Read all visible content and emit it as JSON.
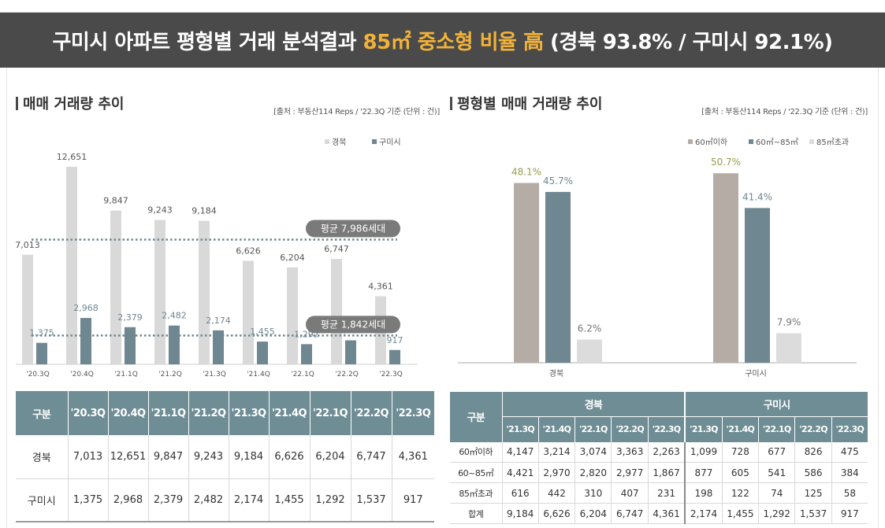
{
  "banner": {
    "title_white_1": "구미시 아파트 평형별 거래 분석결과 ",
    "title_orange": "85㎡ 중소형 비율 高",
    "title_white_2": " (경북 93.8% / 구미시 92.1%)"
  },
  "left": {
    "title": "매매 거래량 추이",
    "source": "[출처 : 부동산114 Reps / '22.3Q 기준 (단위 : 건)]"
  },
  "right": {
    "title": "평형별 매매 거래량 추이",
    "source": "[출처 : 부동산114 Reps / '22.3Q 기준 (단위 : 건)]"
  },
  "chart_data": [
    {
      "type": "bar",
      "categories": [
        "'20.3Q",
        "'20.4Q",
        "'21.1Q",
        "'21.2Q",
        "'21.3Q",
        "'21.4Q",
        "'22.1Q",
        "'22.2Q",
        "'22.3Q"
      ],
      "series": [
        {
          "name": "경북",
          "color": "#d9d9d9",
          "label_color": "#555555",
          "values": [
            7013,
            12651,
            9847,
            9243,
            9184,
            6626,
            6204,
            6747,
            4361
          ],
          "labels": [
            "7,013",
            "12,651",
            "9,847",
            "9,243",
            "9,184",
            "6,626",
            "6,204",
            "6,747",
            "4,361"
          ]
        },
        {
          "name": "구미시",
          "color": "#6f8790",
          "label_color": "#6f8790",
          "values": [
            1375,
            2968,
            2379,
            2482,
            2174,
            1455,
            1292,
            1537,
            917
          ],
          "labels": [
            "1,375",
            "2,968",
            "2,379",
            "2,482",
            "2,174",
            "1,455",
            "1,292",
            "1,537",
            "917"
          ]
        }
      ],
      "averages": [
        {
          "value": 7986,
          "label": "평균 7,986세대"
        },
        {
          "value": 1842,
          "label": "평균 1,842세대"
        }
      ],
      "ylim": [
        0,
        13500
      ],
      "legend": "top-right",
      "grid": false
    },
    {
      "type": "bar",
      "categories": [
        "경북",
        "구미시"
      ],
      "series": [
        {
          "name": "60㎡이하",
          "color": "#b5ada5",
          "label_color": "#9b9a4c",
          "values": [
            48.1,
            50.7
          ],
          "labels": [
            "48.1%",
            "50.7%"
          ]
        },
        {
          "name": "60㎡~85㎡",
          "color": "#6f8790",
          "label_color": "#6f8790",
          "values": [
            45.7,
            41.4
          ],
          "labels": [
            "45.7%",
            "41.4%"
          ]
        },
        {
          "name": "85㎡초과",
          "color": "#dcdcdc",
          "label_color": "#777777",
          "values": [
            6.2,
            7.9
          ],
          "labels": [
            "6.2%",
            "7.9%"
          ]
        }
      ],
      "ylim": [
        0,
        56
      ],
      "legend": "top-right",
      "grid": false
    }
  ],
  "table1": {
    "header": [
      "구분",
      "'20.3Q",
      "'20.4Q",
      "'21.1Q",
      "'21.2Q",
      "'21.3Q",
      "'21.4Q",
      "'22.1Q",
      "'22.2Q",
      "'22.3Q"
    ],
    "rows": [
      [
        "경북",
        "7,013",
        "12,651",
        "9,847",
        "9,243",
        "9,184",
        "6,626",
        "6,204",
        "6,747",
        "4,361"
      ],
      [
        "구미시",
        "1,375",
        "2,968",
        "2,379",
        "2,482",
        "2,174",
        "1,455",
        "1,292",
        "1,537",
        "917"
      ]
    ]
  },
  "table2": {
    "row_header": "구분",
    "groups": [
      "경북",
      "구미시"
    ],
    "quarters": [
      "'21.3Q",
      "'21.4Q",
      "'22.1Q",
      "'22.2Q",
      "'22.3Q",
      "'21.3Q",
      "'21.4Q",
      "'22.1Q",
      "'22.2Q",
      "'22.3Q"
    ],
    "rows": [
      [
        "60㎡이하",
        "4,147",
        "3,214",
        "3,074",
        "3,363",
        "2,263",
        "1,099",
        "728",
        "677",
        "826",
        "475"
      ],
      [
        "60~85㎡",
        "4,421",
        "2,970",
        "2,820",
        "2,977",
        "1,867",
        "877",
        "605",
        "541",
        "586",
        "384"
      ],
      [
        "85㎡초과",
        "616",
        "442",
        "310",
        "407",
        "231",
        "198",
        "122",
        "74",
        "125",
        "58"
      ],
      [
        "합계",
        "9,184",
        "6,626",
        "6,204",
        "6,747",
        "4,361",
        "2,174",
        "1,455",
        "1,292",
        "1,537",
        "917"
      ]
    ]
  }
}
